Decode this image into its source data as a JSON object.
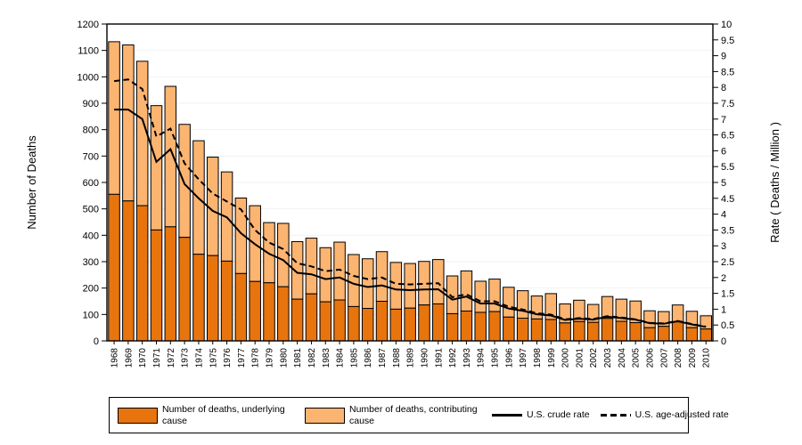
{
  "chart_data": {
    "type": "bar",
    "subtype": "stacked-bar-with-lines",
    "x": [
      1968,
      1969,
      1970,
      1971,
      1972,
      1973,
      1974,
      1975,
      1976,
      1977,
      1978,
      1979,
      1980,
      1981,
      1982,
      1983,
      1984,
      1985,
      1986,
      1987,
      1988,
      1989,
      1990,
      1991,
      1992,
      1993,
      1994,
      1995,
      1996,
      1997,
      1998,
      1999,
      2000,
      2001,
      2002,
      2003,
      2004,
      2005,
      2006,
      2007,
      2008,
      2009,
      2010
    ],
    "series": [
      {
        "name": "Number of deaths, underlying cause",
        "type": "bar",
        "axis": "left",
        "color": "#E8740E",
        "values": [
          555,
          530,
          512,
          420,
          432,
          392,
          328,
          323,
          302,
          255,
          225,
          220,
          205,
          158,
          178,
          148,
          155,
          130,
          123,
          150,
          120,
          124,
          136,
          140,
          103,
          113,
          108,
          111,
          90,
          86,
          83,
          81,
          68,
          73,
          70,
          85,
          74,
          69,
          50,
          55,
          72,
          50,
          45
        ]
      },
      {
        "name": "Number of deaths, contributing cause",
        "type": "bar",
        "axis": "left",
        "color": "#FCB471",
        "values": [
          578,
          591,
          547,
          471,
          532,
          428,
          430,
          373,
          338,
          286,
          287,
          228,
          240,
          218,
          211,
          205,
          219,
          197,
          188,
          188,
          177,
          169,
          165,
          168,
          143,
          152,
          118,
          123,
          113,
          104,
          87,
          98,
          72,
          81,
          68,
          83,
          84,
          82,
          64,
          56,
          64,
          62,
          50
        ]
      },
      {
        "name": "U.S. crude rate",
        "type": "line",
        "style": "solid",
        "axis": "right",
        "color": "#000000",
        "values": [
          7.3,
          7.3,
          7.0,
          5.65,
          6.05,
          4.95,
          4.5,
          4.1,
          3.9,
          3.4,
          3.05,
          2.75,
          2.55,
          2.15,
          2.1,
          1.95,
          2.0,
          1.8,
          1.7,
          1.75,
          1.62,
          1.6,
          1.62,
          1.63,
          1.3,
          1.4,
          1.18,
          1.18,
          1.02,
          0.95,
          0.84,
          0.8,
          0.66,
          0.7,
          0.67,
          0.76,
          0.72,
          0.67,
          0.56,
          0.54,
          0.62,
          0.52,
          0.44
        ]
      },
      {
        "name": "U.S. age-adjusted rate",
        "type": "line",
        "style": "dashed",
        "axis": "right",
        "color": "#000000",
        "values": [
          8.2,
          8.25,
          7.95,
          6.45,
          6.7,
          5.6,
          5.1,
          4.65,
          4.4,
          4.15,
          3.5,
          3.1,
          2.9,
          2.45,
          2.35,
          2.2,
          2.25,
          2.05,
          1.95,
          2.0,
          1.8,
          1.78,
          1.8,
          1.82,
          1.38,
          1.47,
          1.25,
          1.25,
          1.08,
          0.99,
          0.87,
          0.83,
          0.68,
          0.72,
          0.69,
          0.78,
          0.74,
          0.68,
          0.57,
          0.55,
          0.63,
          0.53,
          0.45
        ]
      }
    ],
    "left_axis": {
      "label": "Number of Deaths",
      "min": 0,
      "max": 1200,
      "tick_step": 100,
      "ticks": [
        0,
        100,
        200,
        300,
        400,
        500,
        600,
        700,
        800,
        900,
        1000,
        1100,
        1200
      ]
    },
    "right_axis": {
      "label": "Rate ( Deaths / Million )",
      "min": 0,
      "max": 10,
      "tick_step": 0.5,
      "ticks": [
        0,
        0.5,
        1,
        1.5,
        2,
        2.5,
        3,
        3.5,
        4,
        4.5,
        5,
        5.5,
        6,
        6.5,
        7,
        7.5,
        8,
        8.5,
        9,
        9.5,
        10
      ]
    },
    "grid": true,
    "gridline_color": "#F2F2F2",
    "bar_border_color": "#000000",
    "frame_color": "#000000",
    "legend_position": "bottom"
  },
  "legend": {
    "items": [
      {
        "label": "Number of deaths, underlying cause",
        "swatch": "dark-orange"
      },
      {
        "label": "Number of deaths, contributing cause",
        "swatch": "light-orange"
      },
      {
        "label": "U.S. crude rate",
        "swatch": "solid-line"
      },
      {
        "label": "U.S. age-adjusted rate",
        "swatch": "dashed-line"
      }
    ]
  }
}
